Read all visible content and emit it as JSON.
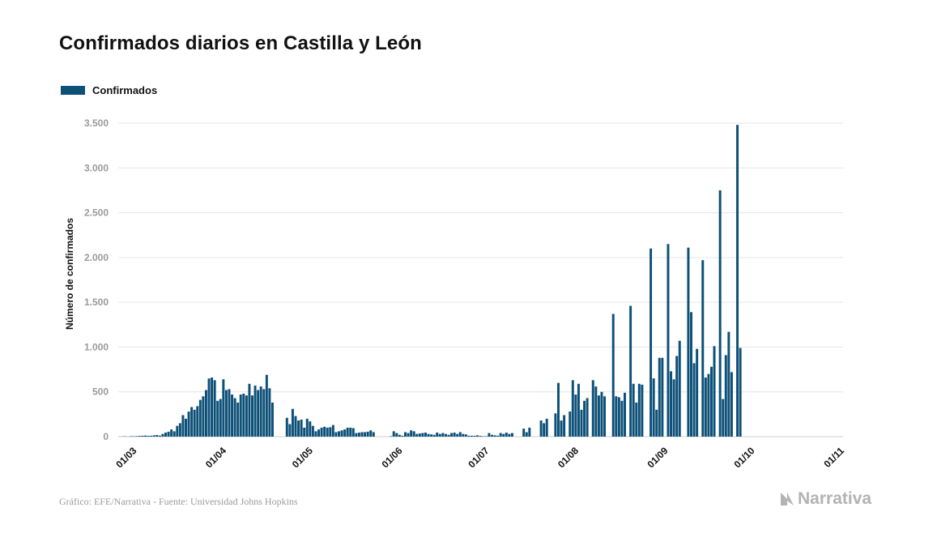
{
  "title": "Confirmados diarios en Castilla y León",
  "footer": {
    "source": "Gráfico: EFE/Narrativa - Fuente: Universidad Johns Hopkins",
    "brand": "Narrativa"
  },
  "colors": {
    "bar": "#0d5078",
    "grid": "#e6e6e6",
    "tick_text": "#9a9a9a",
    "axis_label": "#111111",
    "brand": "#b3b3b3"
  },
  "chart_data": {
    "type": "bar",
    "ylabel": "Número de confirmados",
    "ylim": [
      0,
      3500
    ],
    "y_ticks": [
      {
        "value": 0,
        "label": "0"
      },
      {
        "value": 500,
        "label": "500"
      },
      {
        "value": 1000,
        "label": "1.000"
      },
      {
        "value": 1500,
        "label": "1.500"
      },
      {
        "value": 2000,
        "label": "2.000"
      },
      {
        "value": 2500,
        "label": "2.500"
      },
      {
        "value": 3000,
        "label": "3.000"
      },
      {
        "value": 3500,
        "label": "3.500"
      }
    ],
    "x_range": [
      "2020-02-24",
      "2020-11-01"
    ],
    "x_ticks": [
      {
        "date": "2020-03-01",
        "label": "01/03"
      },
      {
        "date": "2020-04-01",
        "label": "01/04"
      },
      {
        "date": "2020-05-01",
        "label": "01/05"
      },
      {
        "date": "2020-06-01",
        "label": "01/06"
      },
      {
        "date": "2020-07-01",
        "label": "01/07"
      },
      {
        "date": "2020-08-01",
        "label": "01/08"
      },
      {
        "date": "2020-09-01",
        "label": "01/09"
      },
      {
        "date": "2020-10-01",
        "label": "01/10"
      },
      {
        "date": "2020-11-01",
        "label": "01/11"
      }
    ],
    "grid": true,
    "legend": "top-left",
    "series": [
      {
        "name": "Confirmados",
        "start_date": "2020-02-25",
        "values": [
          2,
          3,
          1,
          5,
          4,
          6,
          8,
          10,
          12,
          9,
          10,
          15,
          18,
          12,
          30,
          45,
          55,
          80,
          60,
          120,
          150,
          240,
          200,
          280,
          330,
          300,
          340,
          410,
          450,
          520,
          650,
          660,
          630,
          400,
          420,
          640,
          520,
          530,
          470,
          430,
          380,
          470,
          480,
          460,
          590,
          460,
          570,
          520,
          560,
          530,
          690,
          540,
          380,
          0,
          0,
          0,
          0,
          210,
          140,
          310,
          230,
          180,
          190,
          100,
          200,
          170,
          120,
          60,
          80,
          100,
          110,
          100,
          105,
          130,
          50,
          60,
          70,
          80,
          100,
          100,
          95,
          40,
          45,
          50,
          50,
          55,
          70,
          50,
          0,
          0,
          0,
          0,
          0,
          5,
          60,
          40,
          20,
          10,
          50,
          40,
          70,
          60,
          30,
          35,
          40,
          45,
          30,
          25,
          20,
          45,
          30,
          40,
          30,
          20,
          40,
          45,
          30,
          50,
          30,
          25,
          10,
          10,
          10,
          15,
          8,
          5,
          5,
          40,
          20,
          15,
          10,
          40,
          30,
          45,
          30,
          40,
          0,
          0,
          0,
          90,
          50,
          100,
          0,
          0,
          0,
          180,
          150,
          200,
          0,
          0,
          260,
          600,
          180,
          240,
          0,
          280,
          630,
          470,
          590,
          300,
          400,
          430,
          0,
          630,
          560,
          460,
          500,
          450,
          0,
          0,
          1370,
          450,
          440,
          400,
          490,
          0,
          1460,
          590,
          380,
          590,
          580,
          0,
          0,
          2100,
          650,
          300,
          880,
          880,
          0,
          2150,
          730,
          640,
          900,
          1070,
          0,
          0,
          2110,
          1390,
          820,
          980,
          0,
          1970,
          660,
          700,
          780,
          1010,
          0,
          2750,
          420,
          910,
          1170,
          720,
          0,
          3480,
          990
        ]
      }
    ]
  }
}
